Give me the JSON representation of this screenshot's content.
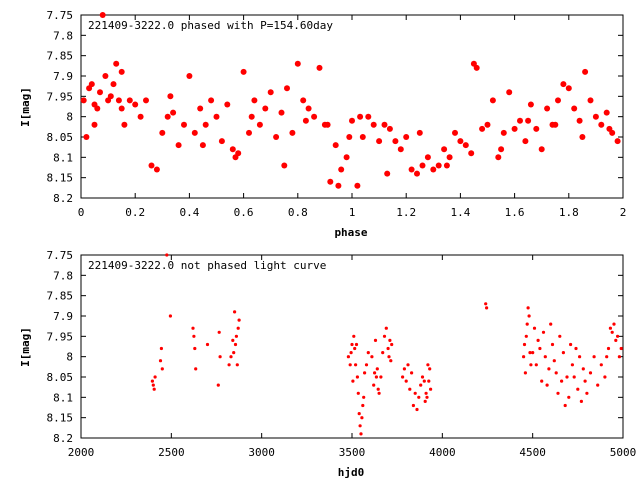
{
  "chart_data": [
    {
      "type": "scatter",
      "title": "221409-3222.0 phased with P=154.60day",
      "xlabel": "phase",
      "ylabel": "I[mag]",
      "xlim": [
        0,
        2
      ],
      "ylim": [
        7.75,
        8.2
      ],
      "y_inverted": true,
      "x_ticks": [
        "0",
        "0.2",
        "0.4",
        "0.6",
        "0.8",
        "1",
        "1.2",
        "1.4",
        "1.6",
        "1.8",
        "2"
      ],
      "y_ticks": [
        "7.75",
        "7.8",
        "7.85",
        "7.9",
        "7.95",
        "8",
        "8.05",
        "8.1",
        "8.15",
        "8.2"
      ],
      "marker_color": "#ff0000",
      "marker_size": "large",
      "grid": false,
      "x": [
        0.01,
        0.02,
        0.03,
        0.04,
        0.05,
        0.06,
        0.07,
        0.08,
        0.09,
        0.1,
        0.11,
        0.12,
        0.13,
        0.14,
        0.15,
        0.16,
        0.18,
        0.2,
        0.22,
        0.24,
        0.26,
        0.28,
        0.3,
        0.32,
        0.34,
        0.36,
        0.38,
        0.4,
        0.42,
        0.44,
        0.46,
        0.48,
        0.5,
        0.52,
        0.54,
        0.56,
        0.58,
        0.6,
        0.62,
        0.64,
        0.66,
        0.68,
        0.7,
        0.72,
        0.74,
        0.76,
        0.78,
        0.8,
        0.82,
        0.84,
        0.86,
        0.88,
        0.9,
        0.92,
        0.94,
        0.96,
        0.98,
        1.0,
        1.02,
        1.04,
        1.06,
        1.08,
        1.1,
        1.12,
        1.14,
        1.16,
        1.18,
        1.2,
        1.22,
        1.24,
        1.26,
        1.28,
        1.3,
        1.32,
        1.34,
        1.36,
        1.38,
        1.4,
        1.42,
        1.44,
        1.45,
        1.46,
        1.48,
        1.5,
        1.52,
        1.54,
        1.56,
        1.58,
        1.6,
        1.62,
        1.64,
        1.66,
        1.68,
        1.7,
        1.72,
        1.74,
        1.76,
        1.78,
        1.8,
        1.82,
        1.84,
        1.86,
        1.88,
        1.9,
        1.92,
        1.94,
        1.96,
        1.98,
        0.05,
        0.15,
        0.33,
        0.45,
        0.57,
        0.63,
        0.75,
        0.83,
        0.91,
        0.95,
        0.99,
        1.03,
        1.13,
        1.25,
        1.35,
        1.55,
        1.65,
        1.75,
        1.85,
        1.95
      ],
      "y": [
        7.96,
        8.05,
        7.93,
        7.92,
        7.97,
        7.98,
        7.94,
        7.75,
        7.9,
        7.96,
        7.95,
        7.92,
        7.87,
        7.96,
        7.89,
        8.02,
        7.96,
        7.97,
        8.0,
        7.96,
        8.12,
        8.13,
        8.04,
        8.0,
        7.99,
        8.07,
        8.02,
        7.9,
        8.04,
        7.98,
        8.02,
        7.96,
        8.0,
        8.06,
        7.97,
        8.08,
        8.09,
        7.89,
        8.04,
        7.96,
        8.02,
        7.98,
        7.94,
        8.05,
        7.99,
        7.93,
        8.04,
        7.87,
        7.96,
        7.98,
        8.0,
        7.88,
        8.02,
        8.16,
        8.07,
        8.13,
        8.1,
        8.01,
        8.17,
        8.05,
        8.0,
        8.02,
        8.06,
        8.02,
        8.03,
        8.06,
        8.08,
        8.05,
        8.13,
        8.14,
        8.12,
        8.1,
        8.13,
        8.12,
        8.08,
        8.1,
        8.04,
        8.06,
        8.07,
        8.09,
        7.87,
        7.88,
        8.03,
        8.02,
        7.96,
        8.1,
        8.04,
        7.94,
        8.03,
        8.01,
        8.06,
        7.97,
        8.03,
        8.08,
        7.98,
        8.02,
        7.96,
        7.92,
        7.93,
        7.98,
        8.01,
        7.89,
        7.96,
        8.0,
        8.02,
        7.99,
        8.04,
        8.06,
        8.02,
        7.98,
        7.95,
        8.07,
        8.1,
        8.0,
        8.12,
        8.01,
        8.02,
        8.17,
        8.05,
        8.0,
        8.14,
        8.04,
        8.12,
        8.08,
        8.01,
        8.02,
        8.05,
        8.03
      ]
    },
    {
      "type": "scatter",
      "title": "221409-3222.0 not phased light curve",
      "xlabel": "hjd0",
      "ylabel": "I[mag]",
      "xlim": [
        2000,
        5000
      ],
      "ylim": [
        7.75,
        8.2
      ],
      "y_inverted": true,
      "x_ticks": [
        "2000",
        "2500",
        "3000",
        "3500",
        "4000",
        "4500",
        "5000"
      ],
      "y_ticks": [
        "7.75",
        "7.8",
        "7.85",
        "7.9",
        "7.95",
        "8",
        "8.05",
        "8.1",
        "8.15",
        "8.2"
      ],
      "marker_color": "#ff0000",
      "marker_size": "small",
      "grid": false,
      "x": [
        2395,
        2400,
        2405,
        2410,
        2440,
        2445,
        2450,
        2475,
        2495,
        2620,
        2625,
        2630,
        2635,
        2700,
        2760,
        2765,
        2770,
        2820,
        2830,
        2840,
        2845,
        2850,
        2855,
        2860,
        2865,
        2870,
        2875,
        3480,
        3490,
        3495,
        3500,
        3505,
        3510,
        3515,
        3520,
        3525,
        3530,
        3535,
        3540,
        3545,
        3550,
        3555,
        3560,
        3565,
        3570,
        3580,
        3590,
        3610,
        3620,
        3625,
        3630,
        3635,
        3640,
        3645,
        3650,
        3660,
        3670,
        3680,
        3690,
        3700,
        3705,
        3710,
        3715,
        3720,
        3780,
        3790,
        3800,
        3810,
        3820,
        3830,
        3840,
        3850,
        3860,
        3870,
        3880,
        3890,
        3900,
        3905,
        3910,
        3915,
        3920,
        3925,
        3930,
        3935,
        4240,
        4245,
        4450,
        4455,
        4460,
        4465,
        4470,
        4475,
        4480,
        4485,
        4490,
        4500,
        4510,
        4520,
        4530,
        4540,
        4550,
        4560,
        4570,
        4580,
        4590,
        4600,
        4610,
        4620,
        4630,
        4640,
        4650,
        4660,
        4670,
        4680,
        4690,
        4700,
        4710,
        4720,
        4730,
        4740,
        4750,
        4760,
        4770,
        4780,
        4790,
        4800,
        4820,
        4840,
        4860,
        4880,
        4900,
        4910,
        4920,
        4930,
        4940,
        4950,
        4960,
        4970,
        4980,
        4990
      ],
      "y": [
        8.06,
        8.07,
        8.08,
        8.05,
        8.01,
        7.98,
        8.03,
        7.75,
        7.9,
        7.93,
        7.95,
        7.98,
        8.03,
        7.97,
        8.07,
        7.94,
        8.0,
        8.02,
        8.0,
        7.96,
        7.99,
        7.89,
        7.97,
        7.95,
        8.02,
        7.93,
        7.91,
        8.0,
        8.02,
        7.99,
        7.97,
        8.06,
        7.95,
        7.98,
        8.02,
        7.97,
        8.05,
        8.09,
        8.14,
        8.17,
        8.19,
        8.15,
        8.12,
        8.1,
        8.04,
        8.02,
        7.99,
        8.0,
        8.07,
        8.04,
        7.96,
        8.05,
        8.03,
        8.08,
        8.09,
        8.05,
        7.99,
        7.95,
        7.93,
        7.98,
        8.0,
        7.96,
        8.01,
        7.97,
        8.05,
        8.03,
        8.06,
        8.02,
        8.08,
        8.04,
        8.12,
        8.09,
        8.13,
        8.1,
        8.07,
        8.05,
        8.06,
        8.11,
        8.09,
        8.1,
        8.02,
        8.06,
        8.03,
        8.08,
        7.87,
        7.88,
        8.0,
        7.97,
        8.04,
        7.95,
        7.92,
        7.88,
        7.9,
        7.99,
        8.02,
        7.99,
        7.93,
        8.02,
        7.96,
        7.98,
        8.06,
        7.94,
        8.0,
        8.07,
        8.03,
        7.92,
        7.97,
        8.01,
        8.04,
        8.09,
        7.95,
        8.06,
        7.99,
        8.12,
        8.05,
        8.1,
        7.97,
        8.02,
        8.05,
        7.98,
        8.08,
        8.0,
        8.11,
        8.03,
        8.06,
        8.09,
        8.04,
        8.0,
        8.07,
        8.02,
        8.05,
        8.0,
        7.98,
        7.93,
        7.94,
        7.92,
        7.96,
        7.95,
        8.0,
        7.98
      ]
    }
  ]
}
